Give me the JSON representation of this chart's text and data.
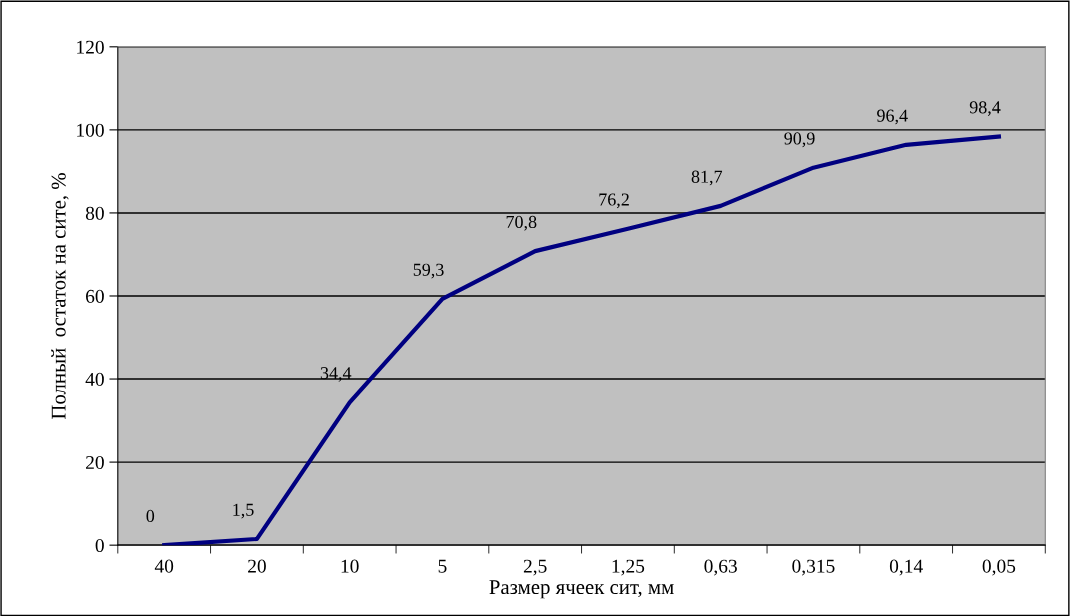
{
  "chart_data": {
    "type": "line",
    "xlabel": "Размер ячеек сит, мм",
    "ylabel": "Полный  остаток на сите, %",
    "categories": [
      "40",
      "20",
      "10",
      "5",
      "2,5",
      "1,25",
      "0,63",
      "0,315",
      "0,14",
      "0,05"
    ],
    "series": [
      {
        "color": "#000080",
        "values": [
          0,
          1.5,
          34.4,
          59.3,
          70.8,
          76.2,
          81.7,
          90.9,
          96.4,
          98.4
        ],
        "value_labels": [
          "0",
          "1,5",
          "34,4",
          "59,3",
          "70,8",
          "76,2",
          "81,7",
          "90,9",
          "96,4",
          "98,4"
        ]
      }
    ],
    "ylim": [
      0,
      120
    ],
    "yticks": [
      0,
      20,
      40,
      60,
      80,
      100,
      120
    ],
    "grid": "y",
    "marker": "none",
    "line_style": "solid"
  }
}
